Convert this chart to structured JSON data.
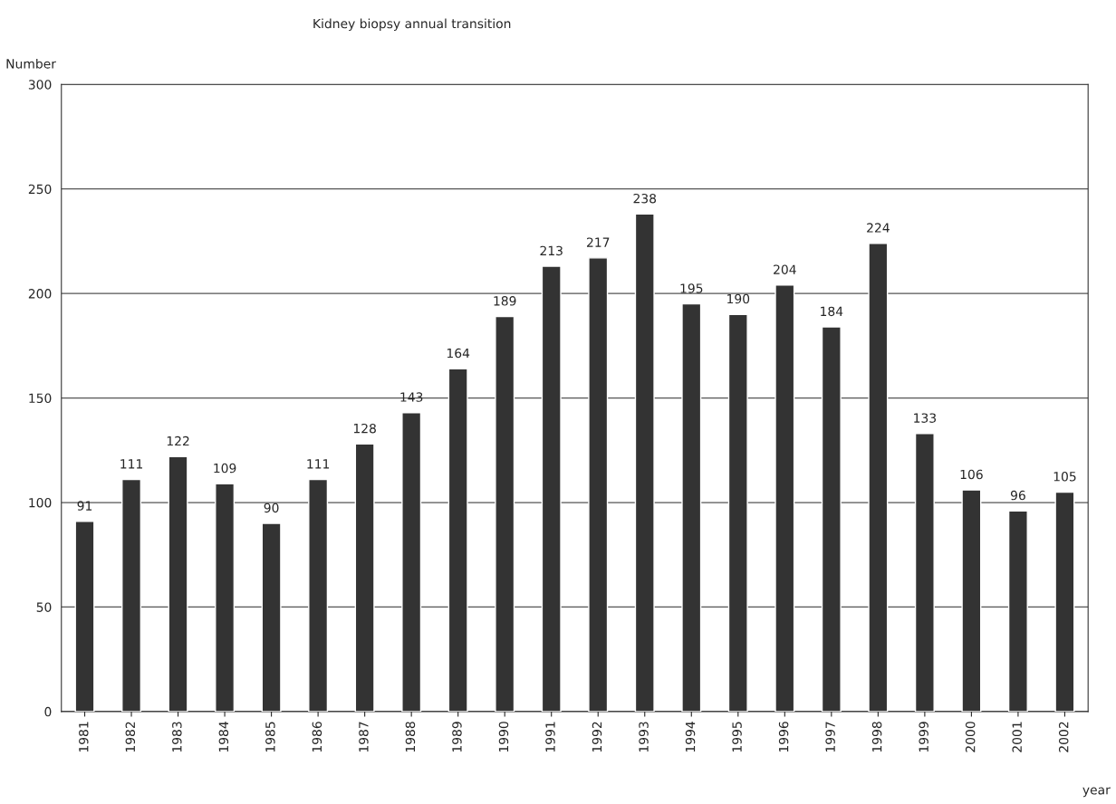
{
  "chart_data": {
    "type": "bar",
    "title": "Kidney biopsy annual transition",
    "ylabel": "Number",
    "xlabel": "year",
    "categories": [
      "1981",
      "1982",
      "1983",
      "1984",
      "1985",
      "1986",
      "1987",
      "1988",
      "1989",
      "1990",
      "1991",
      "1992",
      "1993",
      "1994",
      "1995",
      "1996",
      "1997",
      "1998",
      "1999",
      "2000",
      "2001",
      "2002"
    ],
    "values": [
      91,
      111,
      122,
      109,
      90,
      111,
      128,
      143,
      164,
      189,
      213,
      217,
      238,
      195,
      190,
      204,
      184,
      224,
      133,
      106,
      96,
      105
    ],
    "color": "#333333",
    "ylim": [
      0,
      300
    ],
    "yticks": [
      0,
      50,
      100,
      150,
      200,
      250,
      300
    ],
    "grid": "y",
    "data_labels": true,
    "legend": false
  }
}
